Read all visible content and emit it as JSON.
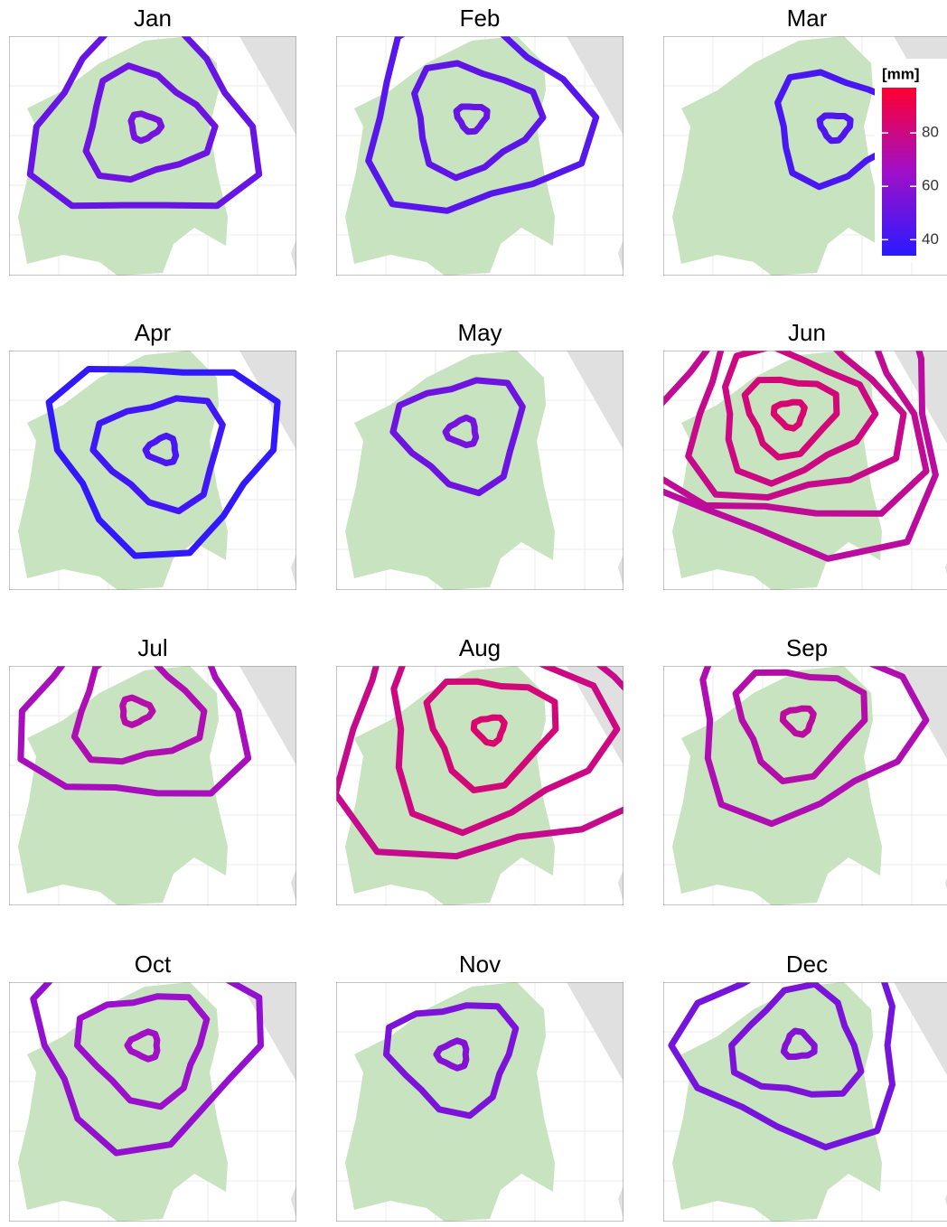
{
  "chart_data": {
    "type": "contour",
    "panels": [
      {
        "title": "Jan",
        "levels": [
          50,
          52,
          54
        ]
      },
      {
        "title": "Feb",
        "levels": [
          46,
          48,
          50
        ]
      },
      {
        "title": "Mar",
        "levels": [
          42,
          44
        ]
      },
      {
        "title": "Apr",
        "levels": [
          36,
          40,
          42
        ]
      },
      {
        "title": "May",
        "levels": [
          52,
          54
        ]
      },
      {
        "title": "Jun",
        "levels": [
          74,
          76,
          78,
          80,
          82,
          84
        ]
      },
      {
        "title": "Jul",
        "levels": [
          68,
          70,
          72
        ]
      },
      {
        "title": "Aug",
        "levels": [
          78,
          80,
          82,
          84
        ]
      },
      {
        "title": "Sep",
        "levels": [
          70,
          72,
          74
        ]
      },
      {
        "title": "Oct",
        "levels": [
          62,
          64,
          66
        ]
      },
      {
        "title": "Nov",
        "levels": [
          56,
          58
        ]
      },
      {
        "title": "Dec",
        "levels": [
          54,
          56,
          58
        ]
      }
    ],
    "colorbar": {
      "title": "[mm]",
      "lim": [
        34,
        97
      ],
      "ticks": [
        40,
        60,
        80
      ],
      "colors": [
        "#2a1aff",
        "#a010c8",
        "#ff0030"
      ]
    }
  }
}
